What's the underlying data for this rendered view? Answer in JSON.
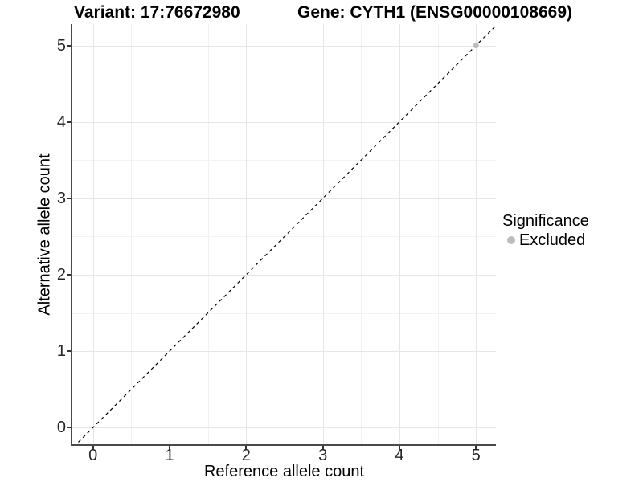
{
  "chart_data": {
    "type": "scatter",
    "title_left": "Variant: 17:76672980",
    "title_right": "Gene: CYTH1 (ENSG00000108669)",
    "xlabel": "Reference allele count",
    "ylabel": "Alternative allele count",
    "xlim": [
      -0.27,
      5.26
    ],
    "ylim": [
      -0.24,
      5.28
    ],
    "x_major_ticks": [
      0,
      1,
      2,
      3,
      4,
      5
    ],
    "y_major_ticks": [
      0,
      1,
      2,
      3,
      4,
      5
    ],
    "x_minor_gridlines": [
      0.5,
      1.5,
      2.5,
      3.5,
      4.5
    ],
    "y_minor_gridlines": [
      0.5,
      1.5,
      2.5,
      3.5,
      4.5
    ],
    "grid": "major+minor",
    "reference_line": {
      "kind": "identity y=x",
      "style": "dashed",
      "color": "#000000"
    },
    "points": [
      {
        "x": 5,
        "y": 5,
        "significance": "Excluded"
      }
    ],
    "legend": {
      "title": "Significance",
      "position": "right",
      "entries": [
        {
          "label": "Excluded",
          "color": "#bdbdbd"
        }
      ]
    },
    "colors": {
      "major_grid": "#e6e6e6",
      "minor_grid": "#f2f2f2",
      "axis_line": "#4a4a4a",
      "tick_mark": "#333333",
      "point": "#bdbdbd"
    }
  }
}
